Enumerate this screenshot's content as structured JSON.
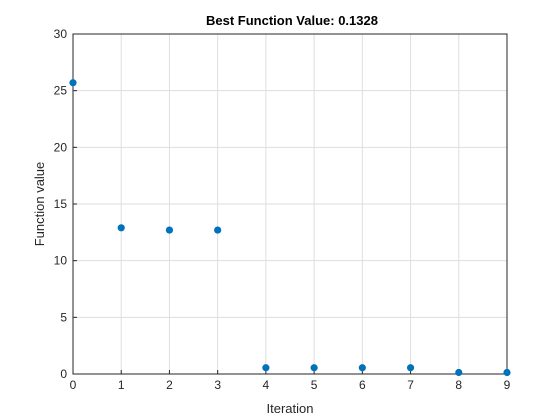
{
  "chart_data": {
    "type": "scatter",
    "title": "Best Function Value: 0.1328",
    "xlabel": "Iteration",
    "ylabel": "Function value",
    "xlim": [
      0,
      9
    ],
    "ylim": [
      0,
      30
    ],
    "xticks": [
      0,
      1,
      2,
      3,
      4,
      5,
      6,
      7,
      8,
      9
    ],
    "yticks": [
      0,
      5,
      10,
      15,
      20,
      25,
      30
    ],
    "grid": true,
    "marker_color": "#0072BD",
    "series": [
      {
        "x": [
          0,
          1,
          2,
          3,
          4,
          5,
          6,
          7,
          8,
          9
        ],
        "y": [
          25.7,
          12.9,
          12.7,
          12.7,
          0.55,
          0.55,
          0.55,
          0.55,
          0.1328,
          0.1328
        ]
      }
    ]
  }
}
